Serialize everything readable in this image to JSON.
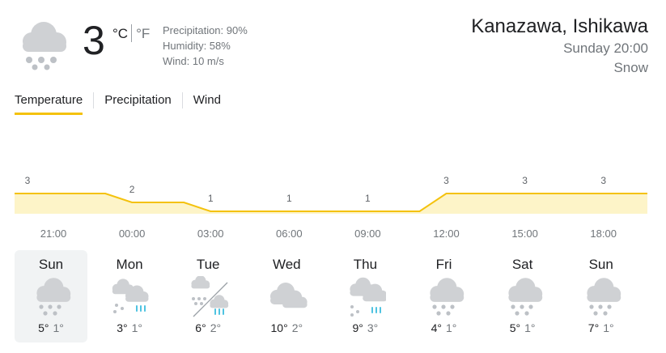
{
  "current": {
    "temperature": "3",
    "unit_c": "°C",
    "unit_f": "°F",
    "precipitation": "Precipitation: 90%",
    "humidity": "Humidity: 58%",
    "wind": "Wind: 10 m/s",
    "icon": "cloud-snow-icon"
  },
  "location": {
    "city": "Kanazawa, Ishikawa",
    "time": "Sunday 20:00",
    "condition": "Snow"
  },
  "tabs": [
    {
      "label": "Temperature",
      "active": true
    },
    {
      "label": "Precipitation",
      "active": false
    },
    {
      "label": "Wind",
      "active": false
    }
  ],
  "chart_data": {
    "type": "area",
    "x": [
      "21:00",
      "00:00",
      "03:00",
      "06:00",
      "09:00",
      "12:00",
      "15:00",
      "18:00"
    ],
    "values": [
      3,
      2,
      1,
      1,
      1,
      3,
      3,
      3
    ],
    "series_color": "#f4c20d",
    "fill_color": "#fdf4c8"
  },
  "days": [
    {
      "name": "Sun",
      "high": "5°",
      "low": "1°",
      "icon": "cloud-snow-icon",
      "selected": true
    },
    {
      "name": "Mon",
      "high": "3°",
      "low": "1°",
      "icon": "snow-rain-icon",
      "selected": false
    },
    {
      "name": "Tue",
      "high": "6°",
      "low": "2°",
      "icon": "snow-then-rain-icon",
      "selected": false
    },
    {
      "name": "Wed",
      "high": "10°",
      "low": "2°",
      "icon": "cloudy-icon",
      "selected": false
    },
    {
      "name": "Thu",
      "high": "9°",
      "low": "3°",
      "icon": "cloud-snow-rain-icon",
      "selected": false
    },
    {
      "name": "Fri",
      "high": "4°",
      "low": "1°",
      "icon": "cloud-snow-icon",
      "selected": false
    },
    {
      "name": "Sat",
      "high": "5°",
      "low": "1°",
      "icon": "cloud-snow-icon",
      "selected": false
    },
    {
      "name": "Sun",
      "high": "7°",
      "low": "1°",
      "icon": "cloud-snow-icon",
      "selected": false
    }
  ],
  "colors": {
    "snow": "#bdc1c6",
    "cloud": "#cfd1d4",
    "rain": "#4fc3e1",
    "accent": "#f4c20d"
  }
}
